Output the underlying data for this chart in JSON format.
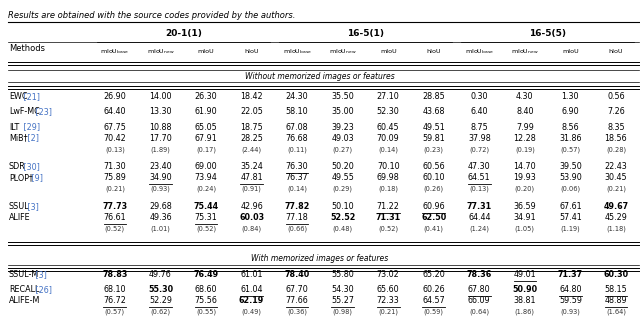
{
  "title": "Results are obtained with the source codes provided by the authors.",
  "section1_label": "Without memorized images or features",
  "section2_label": "With memorized images or features",
  "group_labels": [
    "20-1(1)",
    "16-5(1)",
    "16-5(5)"
  ],
  "rows_s1": [
    {
      "method": "EWC",
      "ref": " [21]",
      "ref_color": "#4472c4",
      "values": [
        "26.90",
        "14.00",
        "26.30",
        "18.42",
        "24.30",
        "35.50",
        "27.10",
        "28.85",
        "0.30",
        "4.30",
        "1.30",
        "0.56"
      ],
      "std": [
        "",
        "",
        "",
        "",
        "",
        "",
        "",
        "",
        "",
        "",
        "",
        ""
      ],
      "bold": [
        false,
        false,
        false,
        false,
        false,
        false,
        false,
        false,
        false,
        false,
        false,
        false
      ],
      "underline": [
        false,
        false,
        false,
        false,
        false,
        false,
        false,
        false,
        false,
        false,
        false,
        false
      ]
    },
    {
      "method": "LwF-MC",
      "ref": " [23]",
      "ref_color": "#4472c4",
      "values": [
        "64.40",
        "13.30",
        "61.90",
        "22.05",
        "58.10",
        "35.00",
        "52.30",
        "43.68",
        "6.40",
        "8.40",
        "6.90",
        "7.26"
      ],
      "std": [
        "",
        "",
        "",
        "",
        "",
        "",
        "",
        "",
        "",
        "",
        "",
        ""
      ],
      "bold": [
        false,
        false,
        false,
        false,
        false,
        false,
        false,
        false,
        false,
        false,
        false,
        false
      ],
      "underline": [
        false,
        false,
        false,
        false,
        false,
        false,
        false,
        false,
        false,
        false,
        false,
        false
      ]
    },
    {
      "method": "ILT",
      "ref": " [29]",
      "ref_color": "#4472c4",
      "values": [
        "67.75",
        "10.88",
        "65.05",
        "18.75",
        "67.08",
        "39.23",
        "60.45",
        "49.51",
        "8.75",
        "7.99",
        "8.56",
        "8.35"
      ],
      "std": [
        "",
        "",
        "",
        "",
        "",
        "",
        "",
        "",
        "",
        "",
        "",
        ""
      ],
      "bold": [
        false,
        false,
        false,
        false,
        false,
        false,
        false,
        false,
        false,
        false,
        false,
        false
      ],
      "underline": [
        false,
        false,
        false,
        false,
        false,
        false,
        false,
        false,
        false,
        false,
        false,
        false
      ]
    },
    {
      "method": "MiB†",
      "ref": " [2]",
      "ref_color": "#4472c4",
      "values": [
        "70.42",
        "17.70",
        "67.91",
        "28.25",
        "76.68",
        "49.03",
        "70.09",
        "59.81",
        "37.98",
        "12.28",
        "31.86",
        "18.56"
      ],
      "std": [
        "(0.13)",
        "(1.89)",
        "(0.17)",
        "(2.44)",
        "(0.11)",
        "(0.27)",
        "(0.14)",
        "(0.23)",
        "(0.72)",
        "(0.19)",
        "(0.57)",
        "(0.28)"
      ],
      "bold": [
        false,
        false,
        false,
        false,
        false,
        false,
        false,
        false,
        false,
        false,
        false,
        false
      ],
      "underline": [
        false,
        false,
        false,
        false,
        false,
        false,
        false,
        false,
        false,
        false,
        false,
        false
      ]
    },
    {
      "method": "SDR",
      "ref": " [30]",
      "ref_color": "#4472c4",
      "values": [
        "71.30",
        "23.40",
        "69.00",
        "35.24",
        "76.30",
        "50.20",
        "70.10",
        "60.56",
        "47.30",
        "14.70",
        "39.50",
        "22.43"
      ],
      "std": [
        "",
        "",
        "",
        "",
        "",
        "",
        "",
        "",
        "",
        "",
        "",
        ""
      ],
      "bold": [
        false,
        false,
        false,
        false,
        false,
        false,
        false,
        false,
        false,
        false,
        false,
        false
      ],
      "underline": [
        false,
        false,
        false,
        false,
        true,
        false,
        false,
        false,
        false,
        false,
        false,
        false
      ]
    },
    {
      "method": "PLOP†",
      "ref": " [9]",
      "ref_color": "#4472c4",
      "values": [
        "75.89",
        "34.90",
        "73.94",
        "47.81",
        "76.37",
        "49.55",
        "69.98",
        "60.10",
        "64.51",
        "19.93",
        "53.90",
        "30.45"
      ],
      "std": [
        "(0.21)",
        "(0.93)",
        "(0.24)",
        "(0.91)",
        "(0.14)",
        "(0.29)",
        "(0.18)",
        "(0.26)",
        "(0.13)",
        "(0.20)",
        "(0.06)",
        "(0.21)"
      ],
      "bold": [
        false,
        false,
        false,
        false,
        false,
        false,
        false,
        false,
        false,
        false,
        false,
        false
      ],
      "underline": [
        false,
        true,
        false,
        true,
        false,
        false,
        false,
        false,
        true,
        false,
        false,
        false
      ]
    },
    {
      "method": "SSUL",
      "ref": " [3]",
      "ref_color": "#4472c4",
      "values": [
        "77.73",
        "29.68",
        "75.44",
        "42.96",
        "77.82",
        "50.10",
        "71.22",
        "60.96",
        "77.31",
        "36.59",
        "67.61",
        "49.67"
      ],
      "std": [
        "",
        "",
        "",
        "",
        "",
        "",
        "",
        "",
        "",
        "",
        "",
        ""
      ],
      "bold": [
        true,
        false,
        true,
        false,
        true,
        false,
        false,
        false,
        true,
        false,
        false,
        true
      ],
      "underline": [
        false,
        false,
        false,
        false,
        false,
        false,
        true,
        true,
        false,
        false,
        false,
        false
      ]
    },
    {
      "method": "ALIFE",
      "ref": "",
      "ref_color": "black",
      "values": [
        "76.61",
        "49.36",
        "75.31",
        "60.03",
        "77.18",
        "52.52",
        "71.31",
        "62.50",
        "64.44",
        "34.91",
        "57.41",
        "45.29"
      ],
      "std": [
        "(0.52)",
        "(1.01)",
        "(0.52)",
        "(0.84)",
        "(0.66)",
        "(0.48)",
        "(0.52)",
        "(0.41)",
        "(1.24)",
        "(1.05)",
        "(1.19)",
        "(1.18)"
      ],
      "bold": [
        false,
        false,
        false,
        true,
        false,
        true,
        true,
        true,
        false,
        false,
        false,
        false
      ],
      "underline": [
        true,
        false,
        true,
        false,
        true,
        false,
        false,
        false,
        false,
        false,
        false,
        false
      ]
    }
  ],
  "rows_s2": [
    {
      "method": "SSUL-M",
      "ref": " [3]",
      "ref_color": "#4472c4",
      "values": [
        "78.83",
        "49.76",
        "76.49",
        "61.01",
        "78.40",
        "55.80",
        "73.02",
        "65.20",
        "78.36",
        "49.01",
        "71.37",
        "60.30"
      ],
      "std": [
        "",
        "",
        "",
        "",
        "",
        "",
        "",
        "",
        "",
        "",
        "",
        ""
      ],
      "bold": [
        true,
        false,
        true,
        false,
        true,
        false,
        false,
        false,
        true,
        false,
        true,
        true
      ],
      "underline": [
        false,
        false,
        false,
        false,
        false,
        false,
        false,
        false,
        false,
        true,
        false,
        false
      ]
    },
    {
      "method": "RECALL",
      "ref": " [26]",
      "ref_color": "#4472c4",
      "values": [
        "68.10",
        "55.30",
        "68.60",
        "61.04",
        "67.70",
        "54.30",
        "65.60",
        "60.26",
        "67.80",
        "50.90",
        "64.80",
        "58.15"
      ],
      "std": [
        "",
        "",
        "",
        "",
        "",
        "",
        "",
        "",
        "",
        "",
        "",
        ""
      ],
      "bold": [
        false,
        true,
        false,
        false,
        false,
        false,
        false,
        false,
        false,
        true,
        false,
        false
      ],
      "underline": [
        false,
        false,
        false,
        true,
        false,
        false,
        false,
        false,
        true,
        false,
        true,
        true
      ]
    },
    {
      "method": "ALIFE-M",
      "ref": "",
      "ref_color": "black",
      "values": [
        "76.72",
        "52.29",
        "75.56",
        "62.19",
        "77.66",
        "55.27",
        "72.33",
        "64.57",
        "66.09",
        "38.81",
        "59.59",
        "48.89"
      ],
      "std": [
        "(0.57)",
        "(0.62)",
        "(0.55)",
        "(0.49)",
        "(0.36)",
        "(0.98)",
        "(0.21)",
        "(0.59)",
        "(0.64)",
        "(1.86)",
        "(0.93)",
        "(1.64)"
      ],
      "bold": [
        false,
        false,
        false,
        true,
        false,
        false,
        false,
        false,
        false,
        false,
        false,
        false
      ],
      "underline": [
        true,
        true,
        true,
        false,
        true,
        true,
        true,
        true,
        false,
        false,
        false,
        true
      ]
    }
  ]
}
